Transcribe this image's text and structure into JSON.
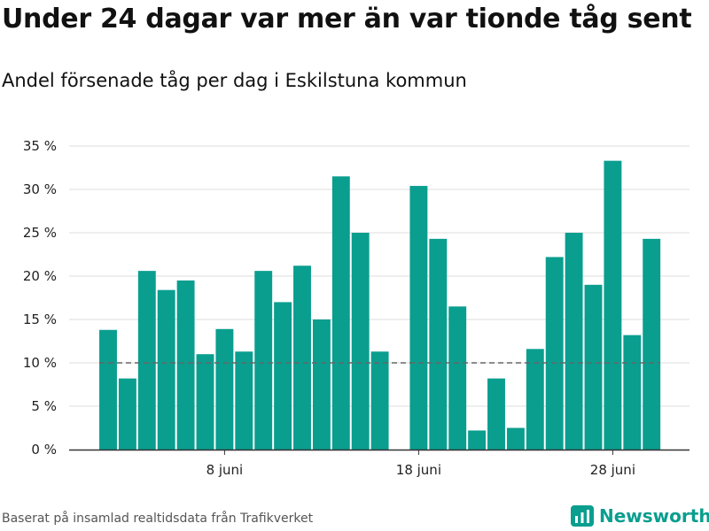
{
  "title": "Under 24 dagar var mer än var tionde tåg sent",
  "subtitle": "Andel försenade tåg per dag i Eskilstuna kommun",
  "source": "Baserat på insamlad realtidsdata från Trafikverket",
  "brand": {
    "name": "Newsworthy",
    "icon": "newsworthy-logo-icon"
  },
  "colors": {
    "bar": "#0a9e8f",
    "reference_line": "#666666",
    "grid": "#dddddd"
  },
  "chart_data": {
    "type": "bar",
    "title": "Under 24 dagar var mer än var tionde tåg sent",
    "subtitle": "Andel försenade tåg per dag i Eskilstuna kommun",
    "xlabel": "",
    "ylabel": "",
    "x_unit": "day of June",
    "categories": [
      2,
      3,
      4,
      5,
      6,
      7,
      8,
      9,
      10,
      11,
      12,
      13,
      14,
      15,
      16,
      17,
      18,
      19,
      20,
      21,
      22,
      23,
      24,
      25,
      26,
      27,
      28,
      29,
      30
    ],
    "values": [
      13.8,
      8.2,
      20.6,
      18.4,
      19.5,
      11.0,
      13.9,
      11.3,
      20.6,
      17.0,
      21.2,
      15.0,
      31.5,
      25.0,
      11.3,
      null,
      30.4,
      24.3,
      16.5,
      2.2,
      8.2,
      2.5,
      11.6,
      22.2,
      25.0,
      19.0,
      33.3,
      13.2,
      24.3
    ],
    "x_ticks": [
      {
        "value": 8,
        "label": "8 juni"
      },
      {
        "value": 18,
        "label": "18 juni"
      },
      {
        "value": 28,
        "label": "28 juni"
      }
    ],
    "y_ticks": [
      0,
      5,
      10,
      15,
      20,
      25,
      30,
      35
    ],
    "y_tick_labels": [
      "0 %",
      "5 %",
      "10 %",
      "15 %",
      "20 %",
      "25 %",
      "30 %",
      "35 %"
    ],
    "ylim": [
      0,
      35
    ],
    "reference_line": {
      "value": 10,
      "style": "dashed"
    },
    "grid": "horizontal"
  }
}
